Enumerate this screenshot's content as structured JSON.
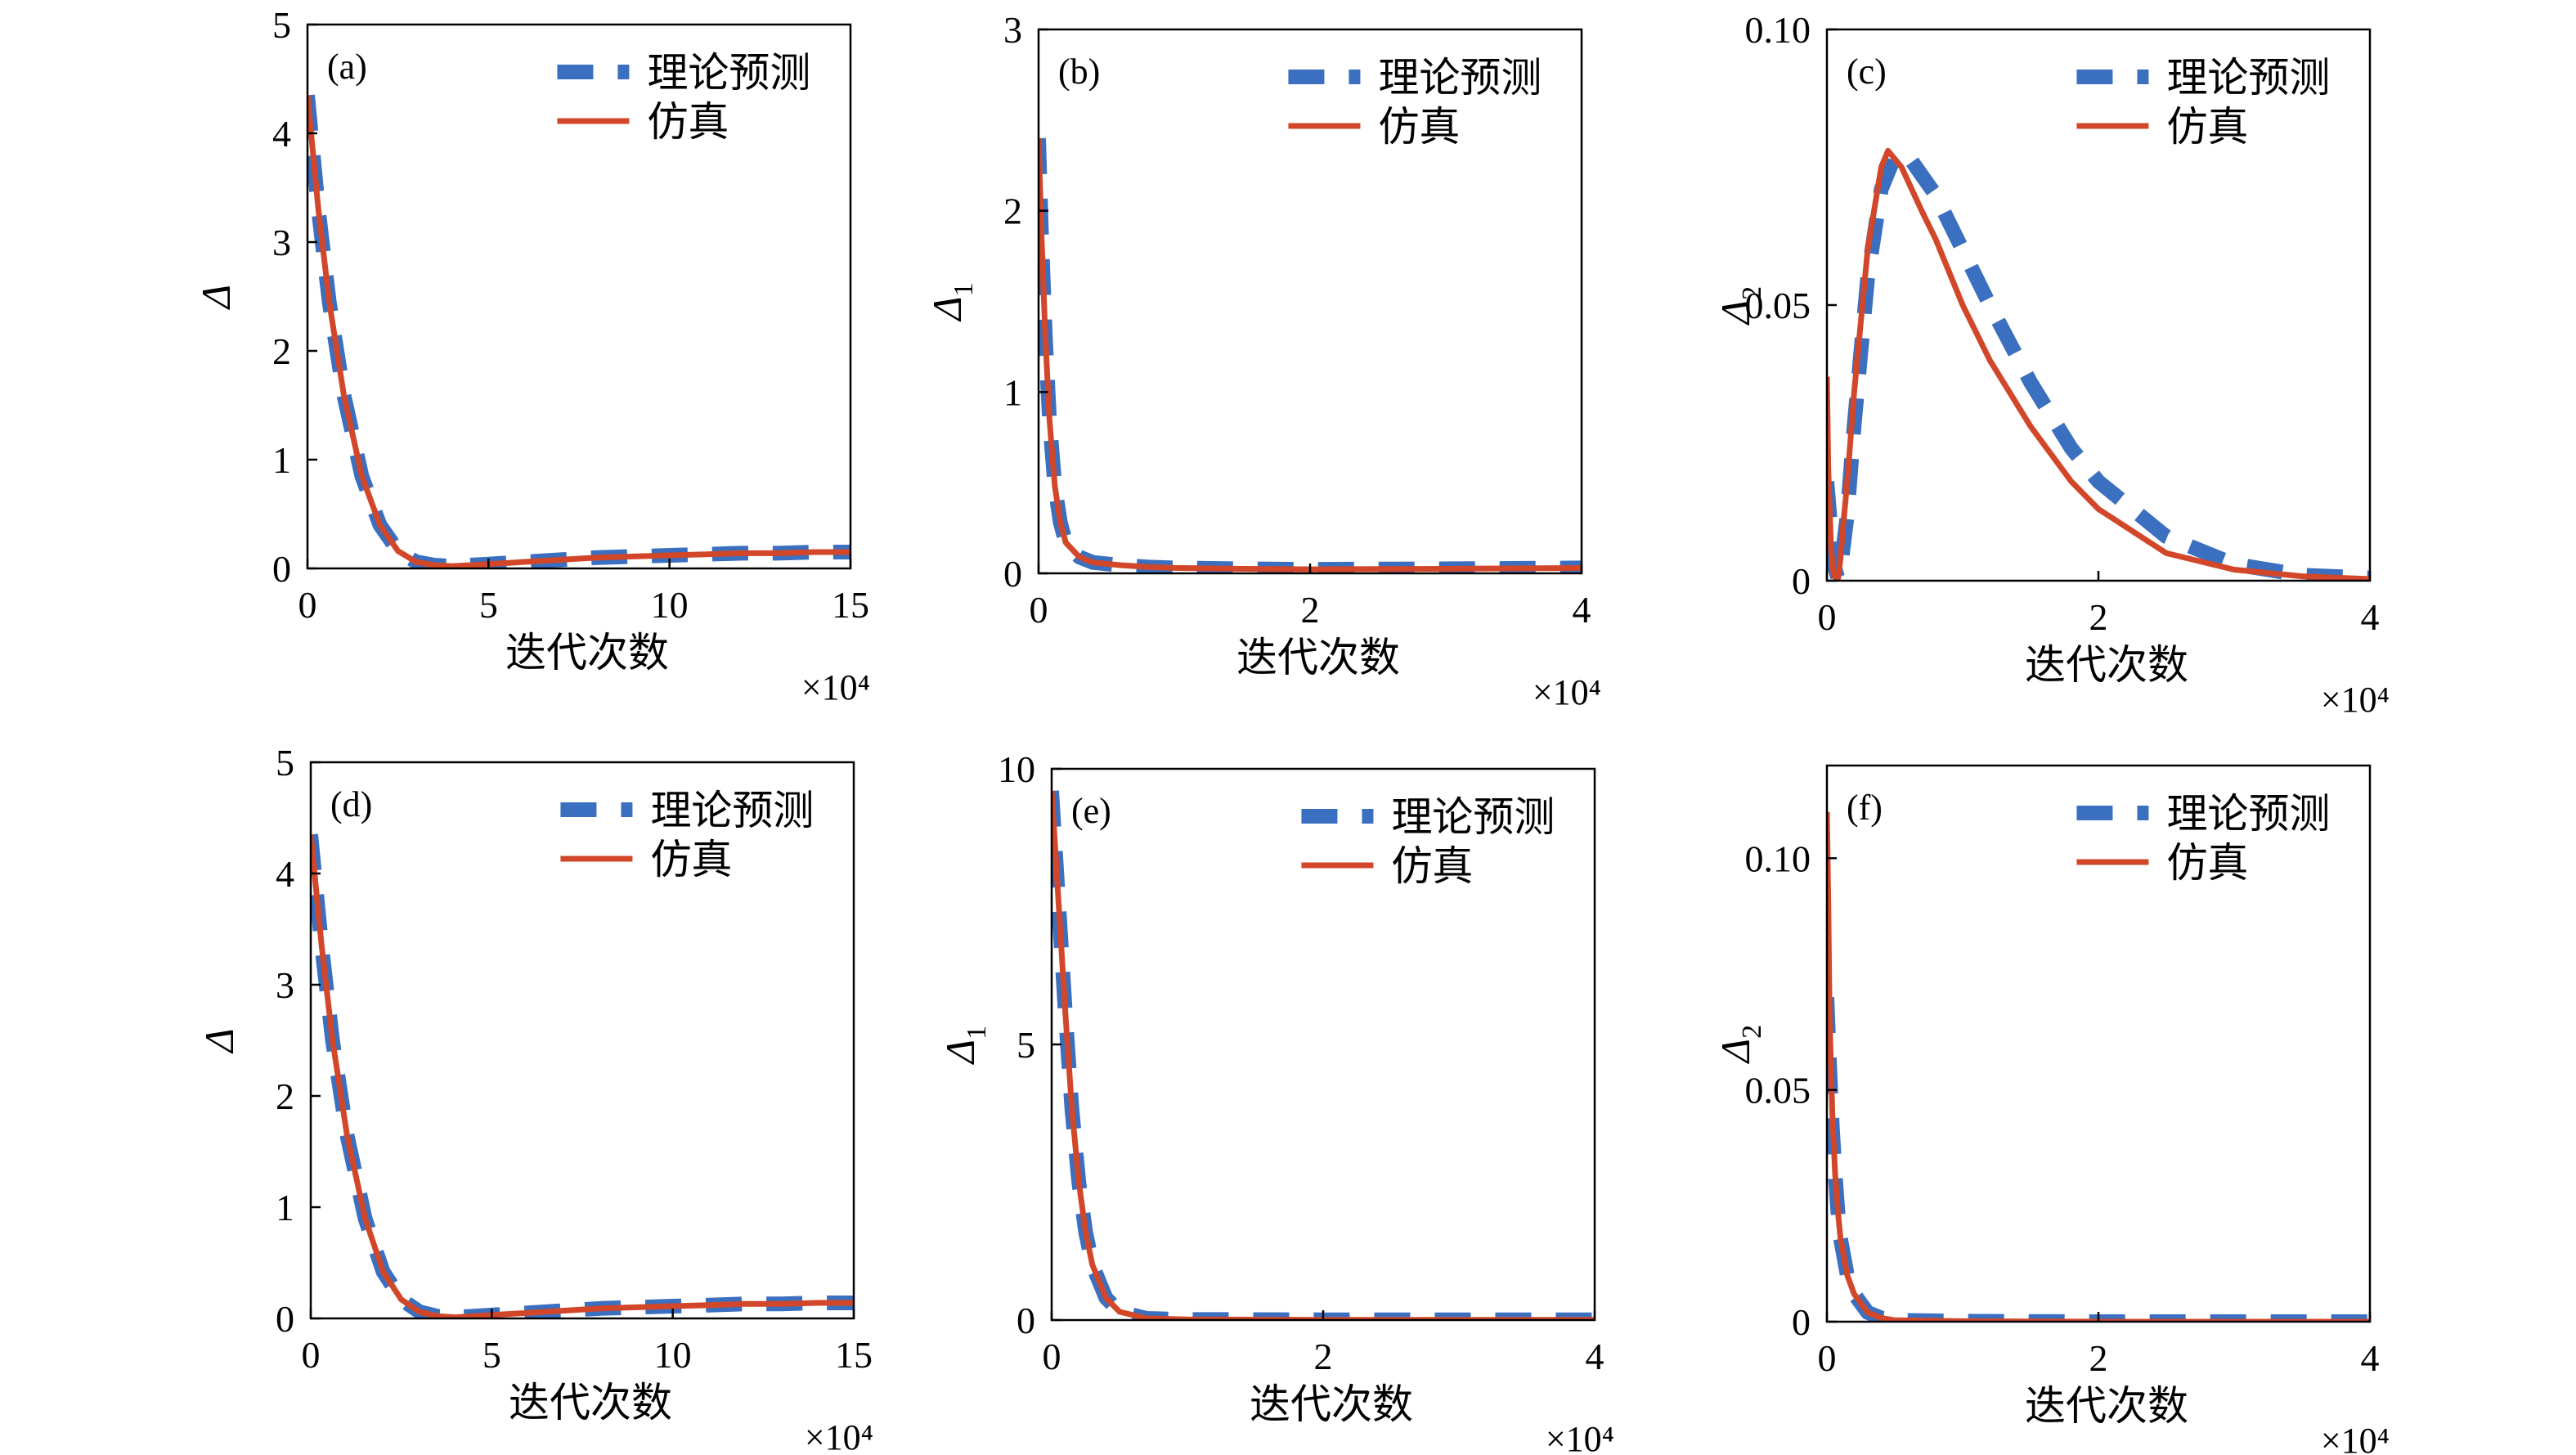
{
  "figure": {
    "legend": {
      "theory_label": "理论预测",
      "sim_label": "仿真"
    },
    "colors": {
      "theory": "#3B6FBF",
      "simulation": "#D2472A",
      "axis": "#000000"
    }
  },
  "chart_data": [
    {
      "id": "a",
      "type": "line",
      "panel_label": "(a)",
      "xlabel": "迭代次数",
      "x_multiplier": "×10⁴",
      "ylabel": "Δ",
      "ylabel_sub": "",
      "xlim": [
        0,
        15
      ],
      "ylim": [
        0,
        5
      ],
      "xticks": [
        0,
        5,
        10,
        15
      ],
      "xtick_labels": [
        "0",
        "5",
        "10",
        "15"
      ],
      "yticks": [
        0,
        1,
        2,
        3,
        4,
        5
      ],
      "ytick_labels": [
        "0",
        "1",
        "2",
        "3",
        "4",
        "5"
      ],
      "legend_position": "top-right",
      "series": [
        {
          "name": "理论预测",
          "style": "dashed",
          "x": [
            0,
            0.3,
            0.6,
            1,
            1.5,
            2,
            2.5,
            3,
            3.5,
            4,
            5,
            6,
            7,
            8,
            9,
            10,
            11,
            12,
            13,
            14,
            15
          ],
          "y": [
            4.35,
            3.3,
            2.45,
            1.6,
            0.85,
            0.4,
            0.16,
            0.06,
            0.03,
            0.02,
            0.04,
            0.06,
            0.08,
            0.1,
            0.11,
            0.12,
            0.13,
            0.14,
            0.14,
            0.15,
            0.15
          ]
        },
        {
          "name": "仿真",
          "style": "solid",
          "x": [
            0,
            0.3,
            0.6,
            1,
            1.5,
            2,
            2.5,
            3,
            3.5,
            4,
            5,
            6,
            7,
            8,
            9,
            10,
            11,
            12,
            13,
            14,
            15
          ],
          "y": [
            4.35,
            3.3,
            2.45,
            1.6,
            0.85,
            0.4,
            0.16,
            0.06,
            0.03,
            0.02,
            0.04,
            0.06,
            0.08,
            0.1,
            0.11,
            0.12,
            0.13,
            0.14,
            0.14,
            0.15,
            0.15
          ]
        }
      ]
    },
    {
      "id": "b",
      "type": "line",
      "panel_label": "(b)",
      "xlabel": "迭代次数",
      "x_multiplier": "×10⁴",
      "ylabel": "Δ",
      "ylabel_sub": "1",
      "xlim": [
        0,
        4
      ],
      "ylim": [
        0,
        3
      ],
      "xticks": [
        0,
        2,
        4
      ],
      "xtick_labels": [
        "0",
        "2",
        "4"
      ],
      "yticks": [
        0,
        1,
        2,
        3
      ],
      "ytick_labels": [
        "0",
        "1",
        "2",
        "3"
      ],
      "legend_position": "top-right",
      "series": [
        {
          "name": "理论预测",
          "style": "dashed",
          "x": [
            0,
            0.02,
            0.05,
            0.08,
            0.12,
            0.16,
            0.2,
            0.3,
            0.4,
            0.6,
            0.8,
            1,
            1.5,
            2,
            3,
            4
          ],
          "y": [
            2.4,
            1.9,
            1.3,
            0.85,
            0.48,
            0.28,
            0.17,
            0.09,
            0.06,
            0.045,
            0.035,
            0.03,
            0.025,
            0.022,
            0.025,
            0.03
          ]
        },
        {
          "name": "仿真",
          "style": "solid",
          "x": [
            0,
            0.02,
            0.05,
            0.08,
            0.12,
            0.16,
            0.2,
            0.3,
            0.4,
            0.6,
            0.8,
            1,
            1.5,
            2,
            3,
            4
          ],
          "y": [
            2.4,
            1.9,
            1.3,
            0.85,
            0.48,
            0.28,
            0.17,
            0.09,
            0.06,
            0.045,
            0.035,
            0.03,
            0.025,
            0.022,
            0.025,
            0.03
          ]
        }
      ]
    },
    {
      "id": "c",
      "type": "line",
      "panel_label": "(c)",
      "xlabel": "迭代次数",
      "x_multiplier": "×10⁴",
      "ylabel": "Δ",
      "ylabel_sub": "2",
      "xlim": [
        0,
        4
      ],
      "ylim": [
        0,
        0.1
      ],
      "xticks": [
        0,
        2,
        4
      ],
      "xtick_labels": [
        "0",
        "2",
        "4"
      ],
      "yticks": [
        0,
        0.05,
        0.1
      ],
      "ytick_labels": [
        "0",
        "0.05",
        "0.10"
      ],
      "legend_position": "top-right",
      "series": [
        {
          "name": "理论预测",
          "style": "dashed",
          "x": [
            0,
            0.02,
            0.05,
            0.08,
            0.1,
            0.15,
            0.2,
            0.3,
            0.4,
            0.5,
            0.6,
            0.8,
            1,
            1.2,
            1.5,
            1.8,
            2,
            2.5,
            3,
            3.5,
            4
          ],
          "y": [
            0.018,
            0.012,
            0.003,
            0.0005,
            0.002,
            0.012,
            0.028,
            0.055,
            0.071,
            0.077,
            0.077,
            0.07,
            0.06,
            0.05,
            0.036,
            0.024,
            0.018,
            0.008,
            0.003,
            0.001,
            0.0005
          ]
        },
        {
          "name": "仿真",
          "style": "solid",
          "x": [
            0,
            0.01,
            0.03,
            0.05,
            0.08,
            0.1,
            0.12,
            0.15,
            0.2,
            0.3,
            0.4,
            0.45,
            0.55,
            0.7,
            0.8,
            1,
            1.2,
            1.5,
            1.8,
            2,
            2.5,
            3,
            3.5,
            4
          ],
          "y": [
            0.037,
            0.02,
            0.006,
            0.001,
            0,
            0.004,
            0.01,
            0.018,
            0.034,
            0.06,
            0.075,
            0.078,
            0.075,
            0.067,
            0.062,
            0.05,
            0.04,
            0.028,
            0.018,
            0.013,
            0.005,
            0.002,
            0.0008,
            0.0003
          ]
        }
      ]
    },
    {
      "id": "d",
      "type": "line",
      "panel_label": "(d)",
      "xlabel": "迭代次数",
      "x_multiplier": "×10⁴",
      "ylabel": "Δ",
      "ylabel_sub": "",
      "xlim": [
        0,
        15
      ],
      "ylim": [
        0,
        5
      ],
      "xticks": [
        0,
        5,
        10,
        15
      ],
      "xtick_labels": [
        "0",
        "5",
        "10",
        "15"
      ],
      "yticks": [
        0,
        1,
        2,
        3,
        4,
        5
      ],
      "ytick_labels": [
        "0",
        "1",
        "2",
        "3",
        "4",
        "5"
      ],
      "legend_position": "top-right",
      "series": [
        {
          "name": "理论预测",
          "style": "dashed",
          "x": [
            0,
            0.3,
            0.6,
            1,
            1.5,
            2,
            2.5,
            3,
            3.5,
            4,
            5,
            6,
            7,
            8,
            9,
            10,
            11,
            12,
            13,
            14,
            15
          ],
          "y": [
            4.35,
            3.35,
            2.5,
            1.65,
            0.9,
            0.42,
            0.17,
            0.06,
            0.02,
            0.01,
            0.03,
            0.05,
            0.07,
            0.09,
            0.1,
            0.11,
            0.12,
            0.13,
            0.13,
            0.14,
            0.14
          ]
        },
        {
          "name": "仿真",
          "style": "solid",
          "x": [
            0,
            0.3,
            0.6,
            1,
            1.5,
            2,
            2.5,
            3,
            3.5,
            4,
            5,
            6,
            7,
            8,
            9,
            10,
            11,
            12,
            13,
            14,
            15
          ],
          "y": [
            4.35,
            3.35,
            2.5,
            1.65,
            0.9,
            0.42,
            0.17,
            0.06,
            0.02,
            0.01,
            0.03,
            0.05,
            0.07,
            0.09,
            0.1,
            0.11,
            0.12,
            0.13,
            0.13,
            0.14,
            0.14
          ]
        }
      ]
    },
    {
      "id": "e",
      "type": "line",
      "panel_label": "(e)",
      "xlabel": "迭代次数",
      "x_multiplier": "×10⁴",
      "ylabel": "Δ",
      "ylabel_sub": "1",
      "xlim": [
        0,
        4
      ],
      "ylim": [
        0,
        10
      ],
      "xticks": [
        0,
        2,
        4
      ],
      "xtick_labels": [
        "0",
        "2",
        "4"
      ],
      "yticks": [
        0,
        5,
        10
      ],
      "ytick_labels": [
        "0",
        "5",
        "10"
      ],
      "legend_position": "top-right",
      "series": [
        {
          "name": "理论预测",
          "style": "dashed",
          "x": [
            0,
            0.03,
            0.06,
            0.1,
            0.15,
            0.2,
            0.25,
            0.3,
            0.4,
            0.5,
            0.7,
            1,
            2,
            3,
            4
          ],
          "y": [
            9.6,
            8.4,
            7.2,
            5.6,
            3.8,
            2.5,
            1.6,
            1.0,
            0.4,
            0.15,
            0.03,
            0.01,
            0.005,
            0.005,
            0.005
          ]
        },
        {
          "name": "仿真",
          "style": "solid",
          "x": [
            0,
            0.03,
            0.06,
            0.1,
            0.15,
            0.2,
            0.25,
            0.3,
            0.4,
            0.5,
            0.7,
            1,
            2,
            3,
            4
          ],
          "y": [
            9.6,
            8.4,
            7.2,
            5.6,
            3.8,
            2.5,
            1.6,
            1.0,
            0.4,
            0.15,
            0.03,
            0.01,
            0.005,
            0.005,
            0.005
          ]
        }
      ]
    },
    {
      "id": "f",
      "type": "line",
      "panel_label": "(f)",
      "xlabel": "迭代次数",
      "x_multiplier": "×10⁴",
      "ylabel": "Δ",
      "ylabel_sub": "2",
      "xlim": [
        0,
        4
      ],
      "ylim": [
        0,
        0.12
      ],
      "xticks": [
        0,
        2,
        4
      ],
      "xtick_labels": [
        "0",
        "2",
        "4"
      ],
      "yticks": [
        0,
        0.05,
        0.1
      ],
      "ytick_labels": [
        "0",
        "0.05",
        "0.10"
      ],
      "legend_position": "top-right",
      "series": [
        {
          "name": "理论预测",
          "style": "dashed",
          "x": [
            0,
            0.02,
            0.04,
            0.06,
            0.08,
            0.1,
            0.15,
            0.2,
            0.3,
            0.4,
            0.5,
            1,
            2,
            3,
            4
          ],
          "y": [
            0.07,
            0.055,
            0.042,
            0.032,
            0.024,
            0.018,
            0.01,
            0.006,
            0.002,
            0.0008,
            0.0003,
            0.0001,
            0,
            0,
            0
          ]
        },
        {
          "name": "仿真",
          "style": "solid",
          "x": [
            0,
            0.01,
            0.02,
            0.04,
            0.06,
            0.08,
            0.1,
            0.15,
            0.2,
            0.3,
            0.4,
            0.5,
            1,
            2,
            3,
            4
          ],
          "y": [
            0.11,
            0.09,
            0.065,
            0.045,
            0.032,
            0.024,
            0.018,
            0.01,
            0.006,
            0.002,
            0.0008,
            0.0003,
            0.0001,
            0,
            0,
            0
          ]
        }
      ]
    }
  ]
}
